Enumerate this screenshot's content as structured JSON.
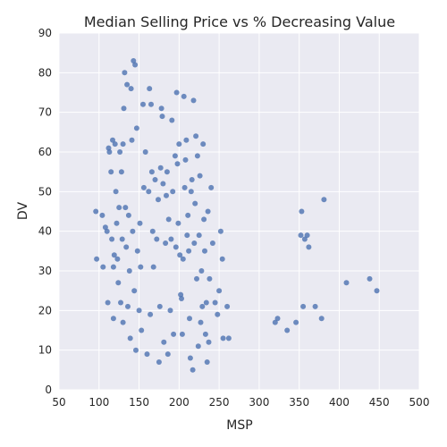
{
  "chart_data": {
    "type": "scatter",
    "title": "Median Selling Price vs % Decreasing Value",
    "xlabel": "MSP",
    "ylabel": "DV",
    "xlim": [
      50,
      500
    ],
    "ylim": [
      0,
      90
    ],
    "xticks": [
      50,
      100,
      150,
      200,
      250,
      300,
      350,
      400,
      450,
      500
    ],
    "yticks": [
      0,
      10,
      20,
      30,
      40,
      50,
      60,
      70,
      80,
      90
    ],
    "grid": true,
    "marker_color": "#4c72b0",
    "background_color": "#eaeaf2",
    "series": [
      {
        "points": [
          [
            96,
            45
          ],
          [
            97,
            33
          ],
          [
            104,
            44
          ],
          [
            105,
            31
          ],
          [
            108,
            41
          ],
          [
            110,
            40
          ],
          [
            111,
            22
          ],
          [
            112,
            61
          ],
          [
            113,
            60
          ],
          [
            115,
            55
          ],
          [
            116,
            38
          ],
          [
            117,
            63
          ],
          [
            118,
            31
          ],
          [
            118,
            18
          ],
          [
            119,
            34
          ],
          [
            120,
            62
          ],
          [
            121,
            50
          ],
          [
            122,
            42
          ],
          [
            123,
            33
          ],
          [
            124,
            27
          ],
          [
            125,
            46
          ],
          [
            126,
            60
          ],
          [
            127,
            22
          ],
          [
            128,
            55
          ],
          [
            129,
            38
          ],
          [
            130,
            17
          ],
          [
            130,
            62
          ],
          [
            131,
            71
          ],
          [
            132,
            80
          ],
          [
            133,
            46
          ],
          [
            134,
            36
          ],
          [
            135,
            77
          ],
          [
            136,
            21
          ],
          [
            137,
            44
          ],
          [
            138,
            30
          ],
          [
            139,
            13
          ],
          [
            140,
            76
          ],
          [
            141,
            63
          ],
          [
            142,
            40
          ],
          [
            143,
            83
          ],
          [
            144,
            25
          ],
          [
            145,
            82
          ],
          [
            146,
            10
          ],
          [
            147,
            66
          ],
          [
            148,
            35
          ],
          [
            150,
            20
          ],
          [
            151,
            42
          ],
          [
            152,
            31
          ],
          [
            153,
            15
          ],
          [
            155,
            72
          ],
          [
            156,
            51
          ],
          [
            158,
            60
          ],
          [
            160,
            9
          ],
          [
            162,
            50
          ],
          [
            163,
            76
          ],
          [
            164,
            19
          ],
          [
            165,
            72
          ],
          [
            166,
            55
          ],
          [
            167,
            40
          ],
          [
            168,
            31
          ],
          [
            170,
            53
          ],
          [
            172,
            38
          ],
          [
            174,
            48
          ],
          [
            175,
            7
          ],
          [
            176,
            21
          ],
          [
            177,
            56
          ],
          [
            178,
            71
          ],
          [
            179,
            69
          ],
          [
            180,
            52
          ],
          [
            181,
            12
          ],
          [
            183,
            37
          ],
          [
            184,
            49
          ],
          [
            185,
            55
          ],
          [
            186,
            9
          ],
          [
            187,
            43
          ],
          [
            189,
            20
          ],
          [
            190,
            38
          ],
          [
            191,
            68
          ],
          [
            192,
            50
          ],
          [
            193,
            14
          ],
          [
            195,
            59
          ],
          [
            196,
            36
          ],
          [
            197,
            75
          ],
          [
            198,
            57
          ],
          [
            199,
            42
          ],
          [
            200,
            62
          ],
          [
            201,
            34
          ],
          [
            202,
            24
          ],
          [
            203,
            23
          ],
          [
            204,
            14
          ],
          [
            205,
            33
          ],
          [
            206,
            74
          ],
          [
            207,
            51
          ],
          [
            208,
            58
          ],
          [
            209,
            63
          ],
          [
            210,
            39
          ],
          [
            211,
            44
          ],
          [
            212,
            35
          ],
          [
            213,
            18
          ],
          [
            214,
            8
          ],
          [
            215,
            50
          ],
          [
            216,
            53
          ],
          [
            217,
            5
          ],
          [
            218,
            73
          ],
          [
            219,
            37
          ],
          [
            220,
            47
          ],
          [
            221,
            64
          ],
          [
            222,
            28
          ],
          [
            223,
            59
          ],
          [
            224,
            11
          ],
          [
            225,
            39
          ],
          [
            226,
            54
          ],
          [
            227,
            17
          ],
          [
            228,
            30
          ],
          [
            229,
            21
          ],
          [
            230,
            62
          ],
          [
            231,
            43
          ],
          [
            232,
            35
          ],
          [
            233,
            14
          ],
          [
            234,
            22
          ],
          [
            235,
            7
          ],
          [
            236,
            45
          ],
          [
            237,
            12
          ],
          [
            238,
            28
          ],
          [
            240,
            51
          ],
          [
            242,
            37
          ],
          [
            245,
            22
          ],
          [
            248,
            19
          ],
          [
            250,
            25
          ],
          [
            252,
            40
          ],
          [
            254,
            33
          ],
          [
            255,
            13
          ],
          [
            260,
            21
          ],
          [
            262,
            13
          ],
          [
            320,
            17
          ],
          [
            323,
            18
          ],
          [
            335,
            15
          ],
          [
            346,
            17
          ],
          [
            352,
            39
          ],
          [
            353,
            45
          ],
          [
            355,
            21
          ],
          [
            357,
            38
          ],
          [
            360,
            39
          ],
          [
            362,
            36
          ],
          [
            370,
            21
          ],
          [
            378,
            18
          ],
          [
            381,
            48
          ],
          [
            409,
            27
          ],
          [
            438,
            28
          ],
          [
            447,
            25
          ]
        ]
      }
    ]
  }
}
